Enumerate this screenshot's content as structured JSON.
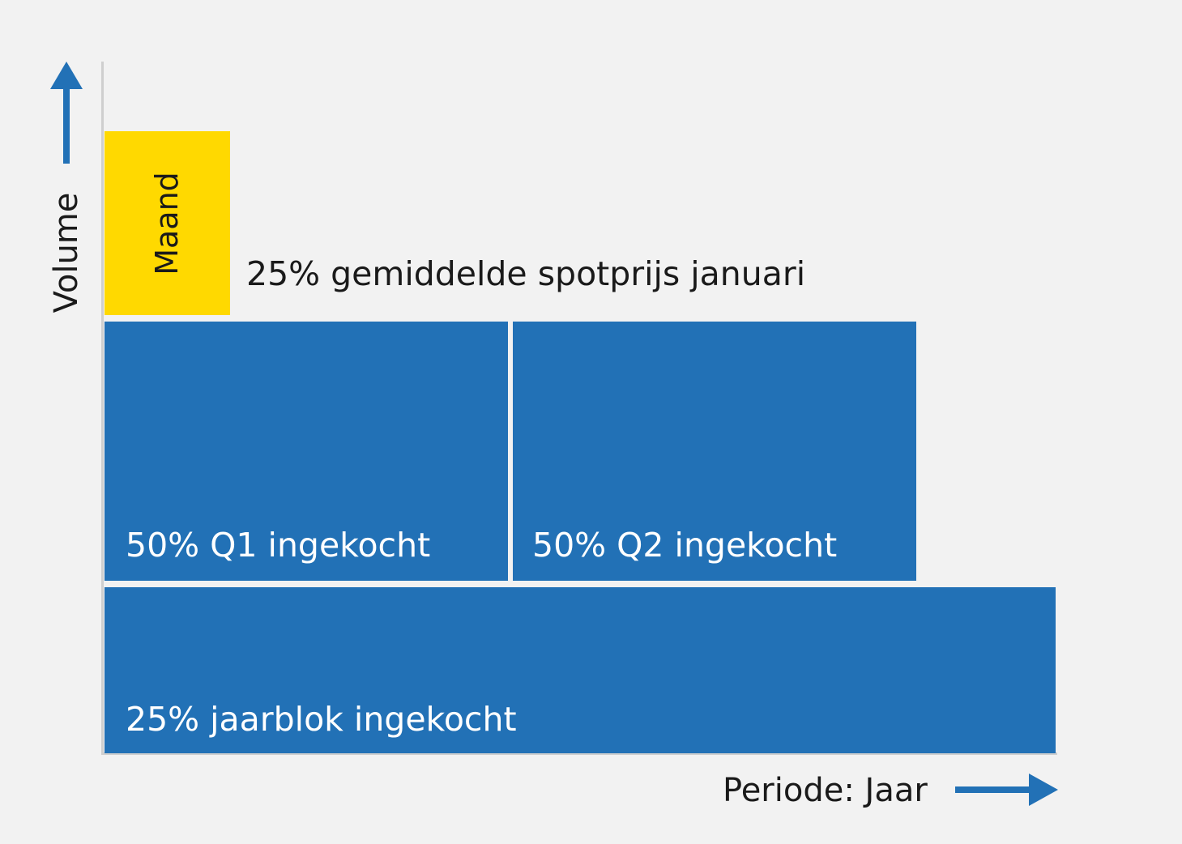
{
  "colors": {
    "background": "#f2f2f2",
    "blue": "#2271b6",
    "yellow": "#ffd900",
    "text_dark": "#1a1a1a",
    "text_light": "#ffffff",
    "axis": "#cfcfcf"
  },
  "axes": {
    "y_label": "Volume",
    "x_label": "Periode: Jaar"
  },
  "blocks": {
    "month": {
      "label": "Maand",
      "note": "25% gemiddelde spotprijs januari"
    },
    "q1": {
      "label": "50% Q1 ingekocht"
    },
    "q2": {
      "label": "50% Q2 ingekocht"
    },
    "year": {
      "label": "25% jaarblok ingekocht"
    }
  },
  "icons": {
    "y_arrow": "arrow-up-icon",
    "x_arrow": "arrow-right-icon"
  }
}
